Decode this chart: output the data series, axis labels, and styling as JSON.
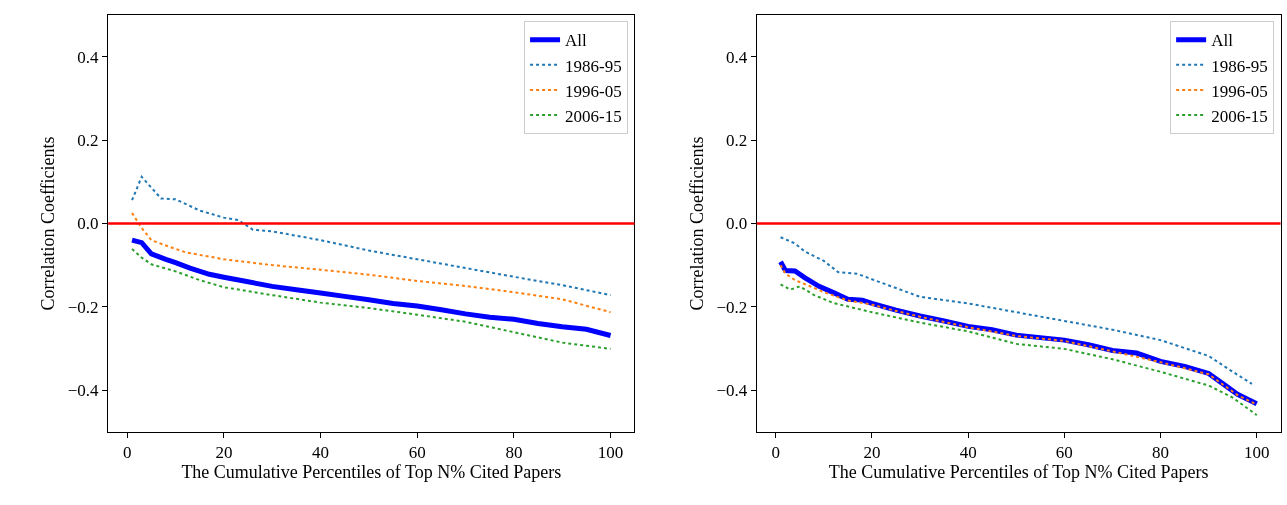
{
  "chart_data": [
    {
      "type": "line",
      "xlabel": "The Cumulative Percentiles of Top N% Cited Papers",
      "ylabel": "Correlation Coefficients",
      "xlim": [
        -3.95,
        104.95
      ],
      "ylim": [
        -0.5,
        0.5
      ],
      "xticks": [
        0,
        20,
        40,
        60,
        80,
        100
      ],
      "yticks": [
        {
          "value": -0.4,
          "label": "−0.4"
        },
        {
          "value": -0.2,
          "label": "−0.2"
        },
        {
          "value": 0.0,
          "label": "0.0"
        },
        {
          "value": 0.2,
          "label": "0.2"
        },
        {
          "value": 0.4,
          "label": "0.4"
        }
      ],
      "legend": "top right",
      "ref_lines": [
        {
          "axis": "y",
          "value": 0,
          "color": "#ff0000",
          "line_style": "solid"
        }
      ],
      "series": [
        {
          "name": "All",
          "color": "#0000ff",
          "line_style": "solid",
          "x": [
            1,
            3,
            5,
            8,
            10,
            13,
            17,
            20,
            25,
            30,
            35,
            40,
            45,
            50,
            55,
            60,
            65,
            70,
            75,
            80,
            85,
            90,
            95,
            100
          ],
          "values": [
            -0.04,
            -0.046,
            -0.073,
            -0.086,
            -0.094,
            -0.107,
            -0.122,
            -0.129,
            -0.14,
            -0.151,
            -0.159,
            -0.167,
            -0.175,
            -0.183,
            -0.192,
            -0.198,
            -0.207,
            -0.217,
            -0.225,
            -0.23,
            -0.24,
            -0.248,
            -0.254,
            -0.269
          ]
        },
        {
          "name": "1986-95",
          "color": "#1f77b4",
          "line_style": "dotted",
          "x": [
            1,
            3,
            7,
            10,
            15,
            20,
            23,
            26,
            30,
            40,
            50,
            60,
            70,
            80,
            90,
            100
          ],
          "values": [
            0.056,
            0.112,
            0.06,
            0.058,
            0.031,
            0.014,
            0.008,
            -0.015,
            -0.019,
            -0.04,
            -0.065,
            -0.086,
            -0.107,
            -0.128,
            -0.148,
            -0.172
          ]
        },
        {
          "name": "1996-05",
          "color": "#ff7f0e",
          "line_style": "dotted",
          "x": [
            1,
            3,
            5,
            8,
            12,
            20,
            30,
            40,
            50,
            60,
            70,
            80,
            90,
            100
          ],
          "values": [
            0.025,
            -0.011,
            -0.04,
            -0.053,
            -0.069,
            -0.086,
            -0.1,
            -0.111,
            -0.123,
            -0.138,
            -0.15,
            -0.165,
            -0.182,
            -0.213
          ]
        },
        {
          "name": "2006-15",
          "color": "#2ca02c",
          "line_style": "dotted",
          "x": [
            1,
            3,
            5,
            10,
            15,
            20,
            30,
            40,
            50,
            60,
            70,
            80,
            90,
            100
          ],
          "values": [
            -0.061,
            -0.082,
            -0.098,
            -0.115,
            -0.136,
            -0.153,
            -0.172,
            -0.19,
            -0.203,
            -0.219,
            -0.236,
            -0.261,
            -0.286,
            -0.301
          ]
        }
      ]
    },
    {
      "type": "line",
      "xlabel": "The Cumulative Percentiles of Top N% Cited Papers",
      "ylabel": "Correlation Coefficients",
      "xlim": [
        -3.95,
        104.95
      ],
      "ylim": [
        -0.5,
        0.5
      ],
      "xticks": [
        0,
        20,
        40,
        60,
        80,
        100
      ],
      "yticks": [
        {
          "value": -0.4,
          "label": "−0.4"
        },
        {
          "value": -0.2,
          "label": "−0.2"
        },
        {
          "value": 0.0,
          "label": "0.0"
        },
        {
          "value": 0.2,
          "label": "0.2"
        },
        {
          "value": 0.4,
          "label": "0.4"
        }
      ],
      "legend": "top right",
      "ref_lines": [
        {
          "axis": "y",
          "value": 0,
          "color": "#ff0000",
          "line_style": "solid"
        }
      ],
      "series": [
        {
          "name": "All",
          "color": "#0000ff",
          "line_style": "solid",
          "x": [
            1,
            2,
            4,
            6,
            9,
            12,
            15,
            18,
            20,
            25,
            30,
            35,
            40,
            45,
            50,
            55,
            60,
            65,
            70,
            75,
            80,
            85,
            90,
            93,
            96,
            100
          ],
          "values": [
            -0.092,
            -0.113,
            -0.114,
            -0.13,
            -0.151,
            -0.166,
            -0.182,
            -0.184,
            -0.192,
            -0.208,
            -0.222,
            -0.234,
            -0.247,
            -0.255,
            -0.268,
            -0.274,
            -0.28,
            -0.291,
            -0.305,
            -0.311,
            -0.331,
            -0.343,
            -0.36,
            -0.385,
            -0.41,
            -0.433
          ]
        },
        {
          "name": "1986-95",
          "color": "#1f77b4",
          "line_style": "dotted",
          "x": [
            1,
            4,
            6,
            10,
            13,
            17,
            20,
            25,
            30,
            40,
            50,
            60,
            70,
            80,
            90,
            95,
            99
          ],
          "values": [
            -0.033,
            -0.048,
            -0.067,
            -0.09,
            -0.117,
            -0.121,
            -0.134,
            -0.155,
            -0.176,
            -0.192,
            -0.213,
            -0.234,
            -0.255,
            -0.28,
            -0.318,
            -0.356,
            -0.385
          ]
        },
        {
          "name": "1996-05",
          "color": "#ff7f0e",
          "line_style": "dotted",
          "x": [
            1,
            2,
            4,
            7,
            10,
            15,
            20,
            25,
            30,
            40,
            50,
            60,
            70,
            80,
            90,
            93,
            96,
            100
          ],
          "values": [
            -0.1,
            -0.12,
            -0.136,
            -0.15,
            -0.165,
            -0.185,
            -0.195,
            -0.21,
            -0.224,
            -0.249,
            -0.27,
            -0.282,
            -0.307,
            -0.333,
            -0.362,
            -0.387,
            -0.412,
            -0.435
          ]
        },
        {
          "name": "2006-15",
          "color": "#2ca02c",
          "line_style": "dotted",
          "x": [
            1,
            3,
            5,
            8,
            12,
            20,
            30,
            40,
            50,
            60,
            70,
            80,
            90,
            95,
            100
          ],
          "values": [
            -0.146,
            -0.159,
            -0.151,
            -0.172,
            -0.191,
            -0.213,
            -0.238,
            -0.259,
            -0.289,
            -0.301,
            -0.326,
            -0.356,
            -0.389,
            -0.418,
            -0.46
          ]
        }
      ]
    }
  ]
}
